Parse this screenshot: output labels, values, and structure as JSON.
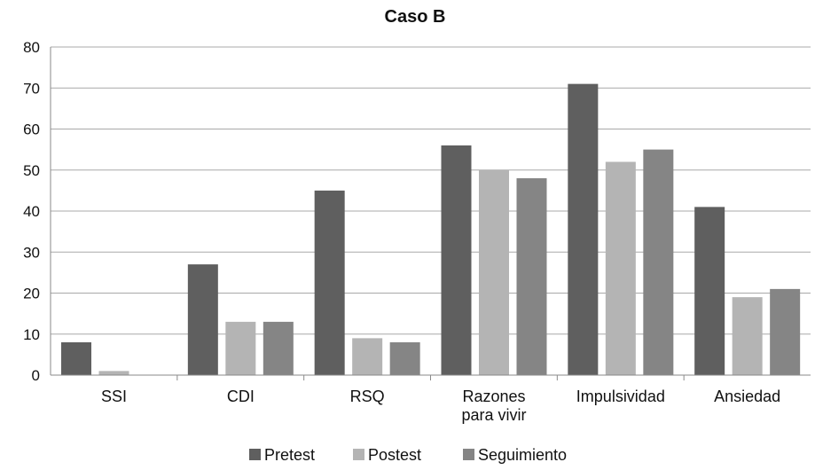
{
  "chart_data": {
    "type": "bar",
    "title": "Caso B",
    "xlabel": "",
    "ylabel": "",
    "categories": [
      [
        "SSI"
      ],
      [
        "CDI"
      ],
      [
        "RSQ"
      ],
      [
        "Razones",
        "para vivir"
      ],
      [
        "Impulsividad"
      ],
      [
        "Ansiedad"
      ]
    ],
    "series": [
      {
        "name": "Pretest",
        "color": "#5f5f5f",
        "values": [
          8,
          27,
          45,
          56,
          71,
          41
        ]
      },
      {
        "name": "Postest",
        "color": "#b4b4b4",
        "values": [
          1,
          13,
          9,
          50,
          52,
          19
        ]
      },
      {
        "name": "Seguimiento",
        "color": "#858585",
        "values": [
          0,
          13,
          8,
          48,
          55,
          21
        ]
      }
    ],
    "ylim": [
      0,
      80
    ],
    "yticks": [
      0,
      10,
      20,
      30,
      40,
      50,
      60,
      70,
      80
    ],
    "grid": true,
    "legend_position": "bottom"
  }
}
